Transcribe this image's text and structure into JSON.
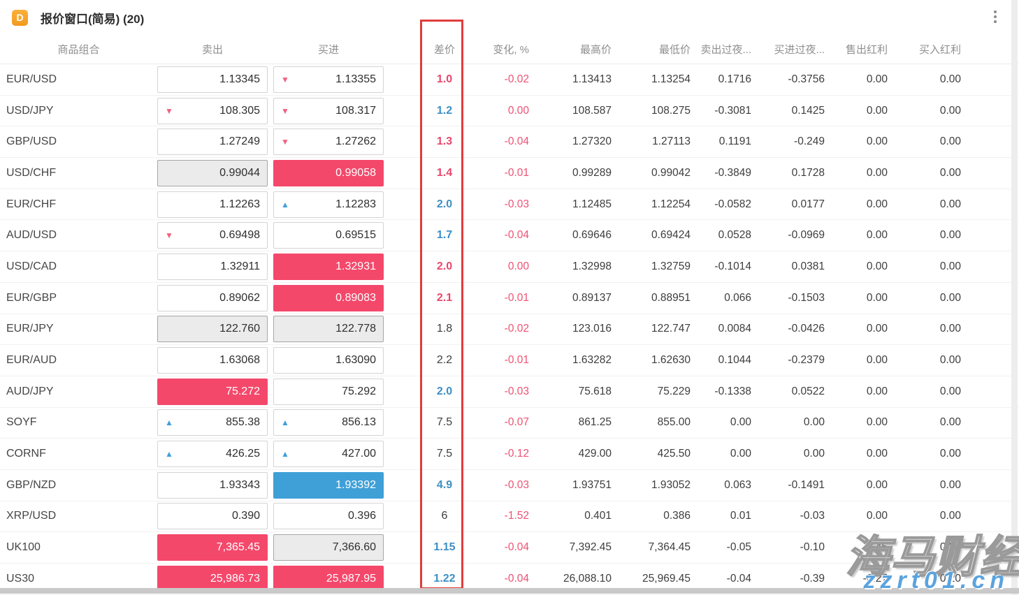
{
  "window": {
    "title": "报价窗口(简易) (20)",
    "icon_letter": "D"
  },
  "table": {
    "columns": {
      "symbol": "商品组合",
      "sell": "卖出",
      "buy": "买进",
      "spread": "差价",
      "change": "变化, %",
      "high": "最高价",
      "low": "最低价",
      "sell_overnight": "卖出过夜...",
      "buy_overnight": "买进过夜...",
      "sell_dividend": "售出红利",
      "buy_dividend": "买入红利"
    },
    "rows": [
      {
        "symbol": "EUR/USD",
        "sell": {
          "value": "1.13345",
          "style": "white",
          "arrow": null
        },
        "buy": {
          "value": "1.13355",
          "style": "white",
          "arrow": "down"
        },
        "spread": {
          "value": "1.0",
          "color": "red"
        },
        "change": "-0.02",
        "high": "1.13413",
        "low": "1.13254",
        "sell_overnight": "0.1716",
        "buy_overnight": "-0.3756",
        "sell_dividend": "0.00",
        "buy_dividend": "0.00"
      },
      {
        "symbol": "USD/JPY",
        "sell": {
          "value": "108.305",
          "style": "white",
          "arrow": "down"
        },
        "buy": {
          "value": "108.317",
          "style": "white",
          "arrow": "down"
        },
        "spread": {
          "value": "1.2",
          "color": "blue"
        },
        "change": "0.00",
        "high": "108.587",
        "low": "108.275",
        "sell_overnight": "-0.3081",
        "buy_overnight": "0.1425",
        "sell_dividend": "0.00",
        "buy_dividend": "0.00"
      },
      {
        "symbol": "GBP/USD",
        "sell": {
          "value": "1.27249",
          "style": "white",
          "arrow": null
        },
        "buy": {
          "value": "1.27262",
          "style": "white",
          "arrow": "down"
        },
        "spread": {
          "value": "1.3",
          "color": "red"
        },
        "change": "-0.04",
        "high": "1.27320",
        "low": "1.27113",
        "sell_overnight": "0.1191",
        "buy_overnight": "-0.249",
        "sell_dividend": "0.00",
        "buy_dividend": "0.00"
      },
      {
        "symbol": "USD/CHF",
        "sell": {
          "value": "0.99044",
          "style": "gray",
          "arrow": null
        },
        "buy": {
          "value": "0.99058",
          "style": "pink",
          "arrow": null
        },
        "spread": {
          "value": "1.4",
          "color": "red"
        },
        "change": "-0.01",
        "high": "0.99289",
        "low": "0.99042",
        "sell_overnight": "-0.3849",
        "buy_overnight": "0.1728",
        "sell_dividend": "0.00",
        "buy_dividend": "0.00"
      },
      {
        "symbol": "EUR/CHF",
        "sell": {
          "value": "1.12263",
          "style": "white",
          "arrow": null
        },
        "buy": {
          "value": "1.12283",
          "style": "white",
          "arrow": "up"
        },
        "spread": {
          "value": "2.0",
          "color": "blue"
        },
        "change": "-0.03",
        "high": "1.12485",
        "low": "1.12254",
        "sell_overnight": "-0.0582",
        "buy_overnight": "0.0177",
        "sell_dividend": "0.00",
        "buy_dividend": "0.00"
      },
      {
        "symbol": "AUD/USD",
        "sell": {
          "value": "0.69498",
          "style": "white",
          "arrow": "down"
        },
        "buy": {
          "value": "0.69515",
          "style": "white",
          "arrow": null
        },
        "spread": {
          "value": "1.7",
          "color": "blue"
        },
        "change": "-0.04",
        "high": "0.69646",
        "low": "0.69424",
        "sell_overnight": "0.0528",
        "buy_overnight": "-0.0969",
        "sell_dividend": "0.00",
        "buy_dividend": "0.00"
      },
      {
        "symbol": "USD/CAD",
        "sell": {
          "value": "1.32911",
          "style": "white",
          "arrow": null
        },
        "buy": {
          "value": "1.32931",
          "style": "pink",
          "arrow": null
        },
        "spread": {
          "value": "2.0",
          "color": "red"
        },
        "change": "0.00",
        "high": "1.32998",
        "low": "1.32759",
        "sell_overnight": "-0.1014",
        "buy_overnight": "0.0381",
        "sell_dividend": "0.00",
        "buy_dividend": "0.00"
      },
      {
        "symbol": "EUR/GBP",
        "sell": {
          "value": "0.89062",
          "style": "white",
          "arrow": null
        },
        "buy": {
          "value": "0.89083",
          "style": "pink",
          "arrow": null
        },
        "spread": {
          "value": "2.1",
          "color": "red"
        },
        "change": "-0.01",
        "high": "0.89137",
        "low": "0.88951",
        "sell_overnight": "0.066",
        "buy_overnight": "-0.1503",
        "sell_dividend": "0.00",
        "buy_dividend": "0.00"
      },
      {
        "symbol": "EUR/JPY",
        "sell": {
          "value": "122.760",
          "style": "gray",
          "arrow": null
        },
        "buy": {
          "value": "122.778",
          "style": "gray",
          "arrow": null
        },
        "spread": {
          "value": "1.8",
          "color": "dark"
        },
        "change": "-0.02",
        "high": "123.016",
        "low": "122.747",
        "sell_overnight": "0.0084",
        "buy_overnight": "-0.0426",
        "sell_dividend": "0.00",
        "buy_dividend": "0.00"
      },
      {
        "symbol": "EUR/AUD",
        "sell": {
          "value": "1.63068",
          "style": "white",
          "arrow": null
        },
        "buy": {
          "value": "1.63090",
          "style": "white",
          "arrow": null
        },
        "spread": {
          "value": "2.2",
          "color": "dark"
        },
        "change": "-0.01",
        "high": "1.63282",
        "low": "1.62630",
        "sell_overnight": "0.1044",
        "buy_overnight": "-0.2379",
        "sell_dividend": "0.00",
        "buy_dividend": "0.00"
      },
      {
        "symbol": "AUD/JPY",
        "sell": {
          "value": "75.272",
          "style": "pink",
          "arrow": null
        },
        "buy": {
          "value": "75.292",
          "style": "white",
          "arrow": null
        },
        "spread": {
          "value": "2.0",
          "color": "blue"
        },
        "change": "-0.03",
        "high": "75.618",
        "low": "75.229",
        "sell_overnight": "-0.1338",
        "buy_overnight": "0.0522",
        "sell_dividend": "0.00",
        "buy_dividend": "0.00"
      },
      {
        "symbol": "SOYF",
        "sell": {
          "value": "855.38",
          "style": "white",
          "arrow": "up"
        },
        "buy": {
          "value": "856.13",
          "style": "white",
          "arrow": "up"
        },
        "spread": {
          "value": "7.5",
          "color": "dark"
        },
        "change": "-0.07",
        "high": "861.25",
        "low": "855.00",
        "sell_overnight": "0.00",
        "buy_overnight": "0.00",
        "sell_dividend": "0.00",
        "buy_dividend": "0.00"
      },
      {
        "symbol": "CORNF",
        "sell": {
          "value": "426.25",
          "style": "white",
          "arrow": "up"
        },
        "buy": {
          "value": "427.00",
          "style": "white",
          "arrow": "up"
        },
        "spread": {
          "value": "7.5",
          "color": "dark"
        },
        "change": "-0.12",
        "high": "429.00",
        "low": "425.50",
        "sell_overnight": "0.00",
        "buy_overnight": "0.00",
        "sell_dividend": "0.00",
        "buy_dividend": "0.00"
      },
      {
        "symbol": "GBP/NZD",
        "sell": {
          "value": "1.93343",
          "style": "white",
          "arrow": null
        },
        "buy": {
          "value": "1.93392",
          "style": "blue",
          "arrow": null
        },
        "spread": {
          "value": "4.9",
          "color": "blue"
        },
        "change": "-0.03",
        "high": "1.93751",
        "low": "1.93052",
        "sell_overnight": "0.063",
        "buy_overnight": "-0.1491",
        "sell_dividend": "0.00",
        "buy_dividend": "0.00"
      },
      {
        "symbol": "XRP/USD",
        "sell": {
          "value": "0.390",
          "style": "white",
          "arrow": null
        },
        "buy": {
          "value": "0.396",
          "style": "white",
          "arrow": null
        },
        "spread": {
          "value": "6",
          "color": "dark"
        },
        "change": "-1.52",
        "high": "0.401",
        "low": "0.386",
        "sell_overnight": "0.01",
        "buy_overnight": "-0.03",
        "sell_dividend": "0.00",
        "buy_dividend": "0.00"
      },
      {
        "symbol": "UK100",
        "sell": {
          "value": "7,365.45",
          "style": "pink",
          "arrow": null
        },
        "buy": {
          "value": "7,366.60",
          "style": "gray",
          "arrow": null
        },
        "spread": {
          "value": "1.15",
          "color": "blue"
        },
        "change": "-0.04",
        "high": "7,392.45",
        "low": "7,364.45",
        "sell_overnight": "-0.05",
        "buy_overnight": "-0.10",
        "sell_dividend": "-0.45",
        "buy_dividend": "0.34"
      },
      {
        "symbol": "US30",
        "sell": {
          "value": "25,986.73",
          "style": "pink",
          "arrow": null
        },
        "buy": {
          "value": "25,987.95",
          "style": "pink",
          "arrow": null
        },
        "spread": {
          "value": "1.22",
          "color": "blue"
        },
        "change": "-0.04",
        "high": "26,088.10",
        "low": "25,969.45",
        "sell_overnight": "-0.04",
        "buy_overnight": "-0.39",
        "sell_dividend": "-0.27",
        "buy_dividend": "0.20"
      }
    ]
  },
  "watermark": {
    "line1": "海马财经",
    "line2": "zzrt01.cn"
  },
  "colors": {
    "accent-pink": "#f4486b",
    "accent-blue": "#3fa0d8",
    "arrow-pink": "#f2607e",
    "spread-red": "#e8476b",
    "spread-blue": "#3d8fc6",
    "change-red": "#ee5273",
    "highlight-red": "#e03c3c",
    "accent-orange": "#f29a1e"
  }
}
